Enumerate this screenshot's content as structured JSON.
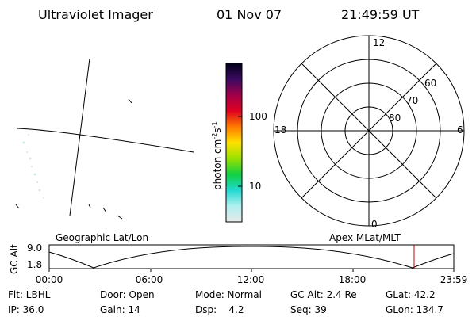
{
  "header": {
    "title": "Ultraviolet Imager",
    "date": "01 Nov 07",
    "time": "21:49:59 UT"
  },
  "colorbar": {
    "label": [
      "photon cm",
      "-2",
      "s",
      "-1"
    ],
    "ticks": [
      "100",
      "10"
    ]
  },
  "polar": {
    "top": "12",
    "bottom": "0",
    "left": "18",
    "right": "6",
    "rings": [
      "60",
      "70",
      "80"
    ]
  },
  "timeline": {
    "left_title": "Geographic Lat/Lon",
    "right_title": "Apex MLat/MLT",
    "y_label": "GC Alt",
    "y_ticks": [
      "9.0",
      "1.8"
    ],
    "x_ticks": [
      "00:00",
      "06:00",
      "12:00",
      "18:00",
      "23:59"
    ]
  },
  "info": [
    [
      "Flt: LBHL",
      "Door: Open",
      "Mode: Normal",
      "GC Alt: 2.4 Re",
      "GLat: 42.2"
    ],
    [
      "IP: 36.0",
      "Gain: 14",
      "Dsp:    4.2",
      "Seq: 39",
      "GLon: 134.7"
    ]
  ]
}
